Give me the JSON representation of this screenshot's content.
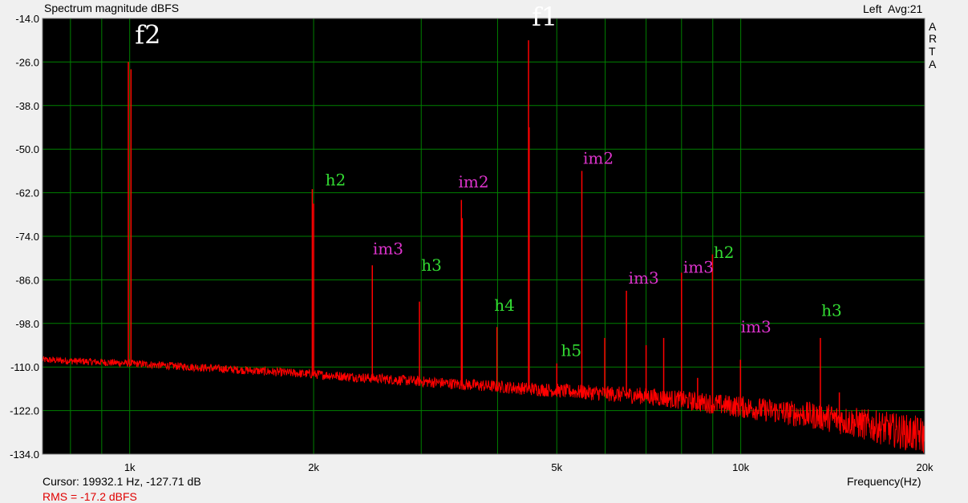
{
  "header": {
    "title": "Spectrum magnitude dBFS",
    "channel": "Left",
    "avg": "Avg:21"
  },
  "brand": [
    "A",
    "R",
    "T",
    "A"
  ],
  "footer": {
    "cursor": "Cursor: 19932.1 Hz, -127.71 dB",
    "rms": "RMS =  -17.2 dBFS",
    "x_unit": "Frequency(Hz)"
  },
  "colors": {
    "background": "#f0f0f0",
    "plot_bg": "#000000",
    "grid": "#008000",
    "trace": "#ff0000",
    "label_fundamental": "#ffffff",
    "label_harmonic": "#33dd33",
    "label_im": "#dd33cc"
  },
  "chart_data": {
    "type": "line",
    "title": "Spectrum magnitude dBFS",
    "xlabel": "Frequency(Hz)",
    "ylabel": "dBFS",
    "xscale": "log",
    "xlim": [
      720,
      20000
    ],
    "ylim": [
      -134,
      -14
    ],
    "grid": true,
    "x_ticks": [
      {
        "value": 1000,
        "label": "1k"
      },
      {
        "value": 2000,
        "label": "2k"
      },
      {
        "value": 5000,
        "label": "5k"
      },
      {
        "value": 10000,
        "label": "10k"
      },
      {
        "value": 20000,
        "label": "20k"
      }
    ],
    "y_ticks": [
      {
        "value": -14,
        "label": "-14.0"
      },
      {
        "value": -26,
        "label": "-26.0"
      },
      {
        "value": -38,
        "label": "-38.0"
      },
      {
        "value": -50,
        "label": "-50.0"
      },
      {
        "value": -62,
        "label": "-62.0"
      },
      {
        "value": -74,
        "label": "-74.0"
      },
      {
        "value": -86,
        "label": "-86.0"
      },
      {
        "value": -98,
        "label": "-98.0"
      },
      {
        "value": -110,
        "label": "-110.0"
      },
      {
        "value": -122,
        "label": "-122.0"
      },
      {
        "value": -134,
        "label": "-134.0"
      }
    ],
    "noise_floor": [
      {
        "x": 720,
        "y": -108
      },
      {
        "x": 1000,
        "y": -109
      },
      {
        "x": 2000,
        "y": -112
      },
      {
        "x": 3000,
        "y": -114
      },
      {
        "x": 5000,
        "y": -116.5
      },
      {
        "x": 7000,
        "y": -118
      },
      {
        "x": 10000,
        "y": -121
      },
      {
        "x": 14000,
        "y": -124
      },
      {
        "x": 20000,
        "y": -129
      }
    ],
    "peaks": [
      {
        "x": 995,
        "y": -26
      },
      {
        "x": 1005,
        "y": -28
      },
      {
        "x": 1990,
        "y": -61
      },
      {
        "x": 2000,
        "y": -65
      },
      {
        "x": 2495,
        "y": -82
      },
      {
        "x": 2980,
        "y": -92
      },
      {
        "x": 3490,
        "y": -64
      },
      {
        "x": 3500,
        "y": -69
      },
      {
        "x": 3990,
        "y": -99
      },
      {
        "x": 4495,
        "y": -20
      },
      {
        "x": 4505,
        "y": -44
      },
      {
        "x": 5000,
        "y": -109
      },
      {
        "x": 5495,
        "y": -56
      },
      {
        "x": 5990,
        "y": -102
      },
      {
        "x": 6500,
        "y": -89
      },
      {
        "x": 7000,
        "y": -104
      },
      {
        "x": 7480,
        "y": -102
      },
      {
        "x": 8000,
        "y": -84
      },
      {
        "x": 8500,
        "y": -113
      },
      {
        "x": 8990,
        "y": -79
      },
      {
        "x": 9990,
        "y": -108
      },
      {
        "x": 13500,
        "y": -102
      },
      {
        "x": 14500,
        "y": -117
      }
    ],
    "annotations": [
      {
        "text": "f2",
        "x": 1020,
        "y": -21,
        "kind": "fundamental",
        "size": 32
      },
      {
        "text": "f1",
        "x": 4550,
        "y": -16,
        "kind": "fundamental",
        "size": 32
      },
      {
        "text": "h2",
        "x": 2090,
        "y": -60,
        "kind": "harmonic",
        "size": 20
      },
      {
        "text": "im3",
        "x": 2500,
        "y": -79,
        "kind": "im",
        "size": 20
      },
      {
        "text": "h3",
        "x": 3000,
        "y": -83.5,
        "kind": "harmonic",
        "size": 20
      },
      {
        "text": "im2",
        "x": 3450,
        "y": -60.5,
        "kind": "im",
        "size": 20
      },
      {
        "text": "h4",
        "x": 3950,
        "y": -94.5,
        "kind": "harmonic",
        "size": 20
      },
      {
        "text": "h5",
        "x": 5080,
        "y": -107,
        "kind": "harmonic",
        "size": 20
      },
      {
        "text": "im2",
        "x": 5520,
        "y": -54,
        "kind": "im",
        "size": 20
      },
      {
        "text": "im3",
        "x": 6550,
        "y": -87,
        "kind": "im",
        "size": 20
      },
      {
        "text": "im3",
        "x": 8050,
        "y": -84,
        "kind": "im",
        "size": 20
      },
      {
        "text": "h2",
        "x": 9030,
        "y": -80,
        "kind": "harmonic",
        "size": 20
      },
      {
        "text": "im3",
        "x": 10000,
        "y": -100.5,
        "kind": "im",
        "size": 20
      },
      {
        "text": "h3",
        "x": 13550,
        "y": -96,
        "kind": "harmonic",
        "size": 20
      }
    ]
  }
}
